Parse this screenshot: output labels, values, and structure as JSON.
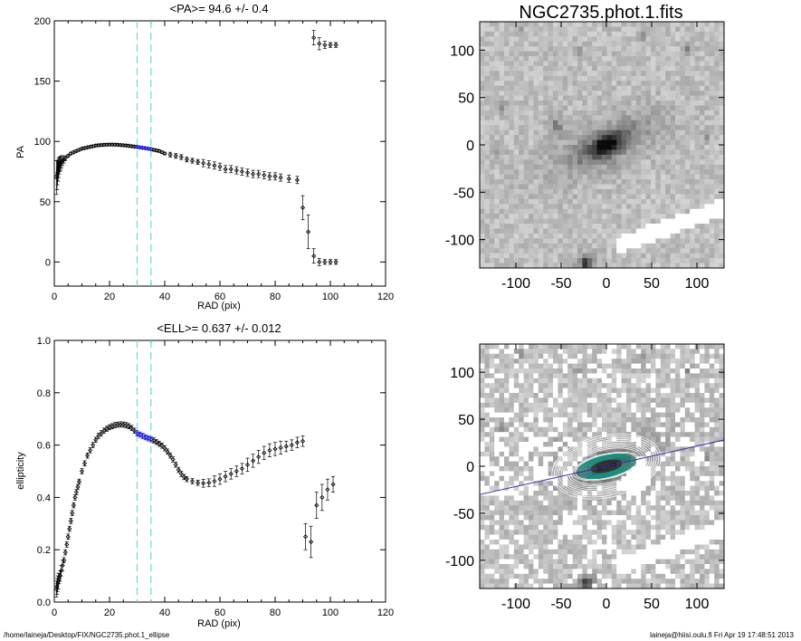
{
  "chart_data": [
    {
      "type": "scatter",
      "title": "<PA>=  94.6 +/-   0.4",
      "xlabel": "RAD (pix)",
      "ylabel": "PA",
      "xlim": [
        0,
        120
      ],
      "ylim": [
        -20,
        200
      ],
      "xticks": [
        "0",
        "20",
        "40",
        "60",
        "80",
        "100",
        "120"
      ],
      "yticks": [
        "0",
        "50",
        "100",
        "150",
        "200"
      ],
      "fit_range_markers": [
        30,
        35
      ],
      "marker_color": "#000000",
      "fit_color": "#0000cc",
      "vline_color": "#66ddcc",
      "points": [
        [
          0.8,
          70,
          14
        ],
        [
          1.0,
          72,
          12
        ],
        [
          1.2,
          74,
          10
        ],
        [
          1.4,
          76,
          9
        ],
        [
          1.6,
          78,
          8
        ],
        [
          1.8,
          80,
          7
        ],
        [
          2.0,
          81,
          6
        ],
        [
          2.3,
          82,
          6
        ],
        [
          2.6,
          83,
          5
        ],
        [
          3.0,
          84,
          4
        ],
        [
          3.5,
          85,
          3
        ],
        [
          4.0,
          86,
          2
        ],
        [
          5,
          88,
          1
        ],
        [
          6,
          90,
          1
        ],
        [
          7,
          91,
          1
        ],
        [
          8,
          92,
          1
        ],
        [
          9,
          93,
          1
        ],
        [
          10,
          94,
          1
        ],
        [
          11,
          94.5,
          1
        ],
        [
          12,
          95,
          1
        ],
        [
          13,
          95.5,
          1
        ],
        [
          14,
          96,
          1
        ],
        [
          15,
          96.5,
          1
        ],
        [
          16,
          96.8,
          1
        ],
        [
          17,
          97,
          1
        ],
        [
          18,
          97.2,
          1
        ],
        [
          19,
          97.3,
          1
        ],
        [
          20,
          97.4,
          1
        ],
        [
          21,
          97.4,
          1
        ],
        [
          22,
          97.3,
          1
        ],
        [
          23,
          97.2,
          1
        ],
        [
          24,
          97,
          1
        ],
        [
          25,
          96.8,
          1
        ],
        [
          26,
          96.6,
          1
        ],
        [
          27,
          96.3,
          1
        ],
        [
          28,
          96,
          1
        ],
        [
          29,
          95.7,
          1
        ],
        [
          30,
          95.4,
          1
        ],
        [
          31,
          95,
          1
        ],
        [
          32,
          94.7,
          1
        ],
        [
          33,
          94.4,
          1
        ],
        [
          34,
          94,
          1
        ],
        [
          35,
          93.6,
          1
        ],
        [
          36,
          93,
          1
        ],
        [
          37,
          92.5,
          1
        ],
        [
          38,
          92,
          1
        ],
        [
          39,
          91,
          1
        ],
        [
          40,
          90,
          1
        ],
        [
          42,
          89,
          2
        ],
        [
          44,
          88,
          2
        ],
        [
          46,
          87,
          2
        ],
        [
          48,
          85,
          2
        ],
        [
          50,
          84,
          2
        ],
        [
          52,
          83,
          2
        ],
        [
          54,
          82,
          3
        ],
        [
          56,
          81,
          3
        ],
        [
          58,
          80,
          3
        ],
        [
          60,
          79,
          3
        ],
        [
          62,
          77,
          3
        ],
        [
          64,
          77,
          3
        ],
        [
          66,
          76,
          3
        ],
        [
          68,
          75,
          3
        ],
        [
          70,
          74,
          3
        ],
        [
          72,
          73,
          3
        ],
        [
          74,
          73,
          3
        ],
        [
          76,
          72,
          3
        ],
        [
          78,
          71,
          3
        ],
        [
          80,
          71,
          3
        ],
        [
          82,
          70,
          3
        ],
        [
          85,
          69,
          3
        ],
        [
          88,
          68,
          3
        ],
        [
          90,
          45,
          10
        ],
        [
          92,
          25,
          14
        ],
        [
          94,
          5,
          6
        ],
        [
          96,
          0,
          3
        ],
        [
          98,
          0,
          2
        ],
        [
          100,
          0,
          2
        ],
        [
          102,
          0,
          2
        ],
        [
          94,
          186,
          6
        ],
        [
          96,
          181,
          5
        ],
        [
          98,
          180,
          3
        ],
        [
          100,
          180,
          2
        ],
        [
          102,
          180,
          2
        ]
      ]
    },
    {
      "type": "scatter",
      "title": "<ELL>= 0.637 +/-  0.012",
      "xlabel": "RAD (pix)",
      "ylabel": "ellipticity",
      "xlim": [
        0,
        120
      ],
      "ylim": [
        0,
        1.0
      ],
      "xticks": [
        "0",
        "20",
        "40",
        "60",
        "80",
        "100",
        "120"
      ],
      "yticks": [
        "0.0",
        "0.2",
        "0.4",
        "0.6",
        "0.8",
        "1.0"
      ],
      "fit_range_markers": [
        30,
        35
      ],
      "points": [
        [
          0.8,
          0.05,
          0.03
        ],
        [
          1.0,
          0.06,
          0.03
        ],
        [
          1.2,
          0.07,
          0.03
        ],
        [
          1.5,
          0.08,
          0.03
        ],
        [
          1.8,
          0.09,
          0.02
        ],
        [
          2.1,
          0.1,
          0.02
        ],
        [
          2.5,
          0.12,
          0.02
        ],
        [
          3,
          0.14,
          0.02
        ],
        [
          3.5,
          0.16,
          0.01
        ],
        [
          4,
          0.19,
          0.01
        ],
        [
          4.5,
          0.22,
          0.01
        ],
        [
          5,
          0.25,
          0.01
        ],
        [
          5.5,
          0.28,
          0.01
        ],
        [
          6,
          0.31,
          0.01
        ],
        [
          6.5,
          0.34,
          0.01
        ],
        [
          7,
          0.37,
          0.01
        ],
        [
          7.5,
          0.4,
          0.01
        ],
        [
          8,
          0.42,
          0.01
        ],
        [
          8.5,
          0.44,
          0.01
        ],
        [
          9,
          0.46,
          0.01
        ],
        [
          10,
          0.5,
          0.01
        ],
        [
          11,
          0.53,
          0.01
        ],
        [
          12,
          0.56,
          0.01
        ],
        [
          13,
          0.58,
          0.01
        ],
        [
          14,
          0.6,
          0.01
        ],
        [
          15,
          0.62,
          0.01
        ],
        [
          16,
          0.635,
          0.01
        ],
        [
          17,
          0.645,
          0.01
        ],
        [
          18,
          0.655,
          0.01
        ],
        [
          19,
          0.662,
          0.01
        ],
        [
          20,
          0.668,
          0.01
        ],
        [
          21,
          0.672,
          0.01
        ],
        [
          22,
          0.676,
          0.01
        ],
        [
          23,
          0.678,
          0.01
        ],
        [
          24,
          0.679,
          0.01
        ],
        [
          25,
          0.678,
          0.01
        ],
        [
          26,
          0.676,
          0.01
        ],
        [
          27,
          0.672,
          0.01
        ],
        [
          28,
          0.665,
          0.01
        ],
        [
          29,
          0.655,
          0.01
        ],
        [
          30,
          0.645,
          0.01
        ],
        [
          31,
          0.64,
          0.01
        ],
        [
          32,
          0.635,
          0.01
        ],
        [
          33,
          0.63,
          0.01
        ],
        [
          34,
          0.626,
          0.01
        ],
        [
          35,
          0.622,
          0.01
        ],
        [
          36,
          0.618,
          0.01
        ],
        [
          37,
          0.612,
          0.01
        ],
        [
          38,
          0.605,
          0.01
        ],
        [
          39,
          0.598,
          0.01
        ],
        [
          40,
          0.588,
          0.01
        ],
        [
          41,
          0.575,
          0.01
        ],
        [
          42,
          0.56,
          0.01
        ],
        [
          43,
          0.545,
          0.01
        ],
        [
          44,
          0.525,
          0.01
        ],
        [
          45,
          0.505,
          0.01
        ],
        [
          46,
          0.49,
          0.01
        ],
        [
          47,
          0.478,
          0.01
        ],
        [
          48,
          0.47,
          0.01
        ],
        [
          50,
          0.462,
          0.01
        ],
        [
          52,
          0.456,
          0.01
        ],
        [
          54,
          0.454,
          0.015
        ],
        [
          56,
          0.456,
          0.015
        ],
        [
          58,
          0.462,
          0.02
        ],
        [
          60,
          0.47,
          0.02
        ],
        [
          62,
          0.48,
          0.02
        ],
        [
          64,
          0.49,
          0.02
        ],
        [
          66,
          0.5,
          0.02
        ],
        [
          68,
          0.51,
          0.02
        ],
        [
          70,
          0.525,
          0.025
        ],
        [
          72,
          0.54,
          0.025
        ],
        [
          74,
          0.555,
          0.025
        ],
        [
          76,
          0.57,
          0.025
        ],
        [
          78,
          0.58,
          0.025
        ],
        [
          80,
          0.585,
          0.025
        ],
        [
          82,
          0.59,
          0.025
        ],
        [
          84,
          0.595,
          0.02
        ],
        [
          86,
          0.6,
          0.02
        ],
        [
          88,
          0.61,
          0.02
        ],
        [
          90,
          0.615,
          0.02
        ],
        [
          91,
          0.25,
          0.05
        ],
        [
          93,
          0.23,
          0.06
        ],
        [
          95,
          0.37,
          0.05
        ],
        [
          97,
          0.4,
          0.05
        ],
        [
          99,
          0.43,
          0.04
        ],
        [
          101,
          0.45,
          0.03
        ]
      ]
    },
    {
      "type": "heatmap",
      "title": "NGC2735.phot.1.fits",
      "xlim": [
        -140,
        130
      ],
      "ylim": [
        -130,
        130
      ],
      "xticks": [
        "-100",
        "-50",
        "0",
        "50",
        "100"
      ],
      "yticks": [
        "100",
        "50",
        "0",
        "-50",
        "-100"
      ],
      "colormap": "grayscale inverted"
    },
    {
      "type": "heatmap",
      "title": "",
      "xlim": [
        -140,
        130
      ],
      "ylim": [
        -130,
        130
      ],
      "xticks": [
        "-100",
        "-50",
        "0",
        "50",
        "100"
      ],
      "yticks": [
        "100",
        "50",
        "0",
        "-50",
        "-100"
      ],
      "major_axis_pa_deg": 94.6,
      "ellipticity": 0.637,
      "contour_colors": [
        "#333333",
        "#1a9080",
        "#ffffff"
      ],
      "axis_line_color": "#3333aa"
    }
  ],
  "footer": {
    "path": "/home/laineja/Desktop/FIX/NGC2735.phot.1_ellipse",
    "stamp": "laineja@hiisi.oulu.fi  Fri Apr 19 17:48:51 2013"
  }
}
